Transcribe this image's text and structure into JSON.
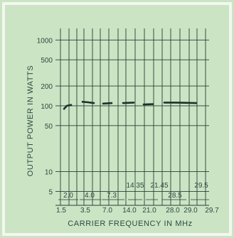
{
  "colors": {
    "background": "#cbe4c4",
    "line": "#1f2f2a",
    "grid": "#2a3f37",
    "text": "#2d4a40",
    "frame": "#f2f7ef"
  },
  "chart_data": {
    "type": "line",
    "xlabel": "CARRIER FREQUENCY IN  MHz",
    "ylabel": "OUTPUT POWER IN WATTS",
    "yscale": "log",
    "ylim": [
      3,
      1500
    ],
    "y_ticks": [
      {
        "label": "1000",
        "value": 1000
      },
      {
        "label": "500",
        "value": 500
      },
      {
        "label": "200",
        "value": 200
      },
      {
        "label": "100",
        "value": 100
      },
      {
        "label": "50",
        "value": 50
      },
      {
        "label": "10",
        "value": 10
      },
      {
        "label": "5",
        "value": 5
      }
    ],
    "x_tick_labels": [
      "1.5",
      "3.5",
      "7.0",
      "14.0",
      "21.0",
      "28.0",
      "29.0",
      "29.7"
    ],
    "band_labels": [
      "2.0",
      "4.0",
      "7.3",
      "14.35",
      "21.45",
      "28.5",
      "29.5"
    ],
    "grid": true,
    "series": [
      {
        "segments": [
          {
            "band": "1.5-2.0",
            "values": [
              90,
              100,
              103
            ]
          },
          {
            "band": "3.5-4.0",
            "values": [
              115,
              113,
              110
            ]
          },
          {
            "band": "7.0-7.3",
            "values": [
              108,
              110
            ]
          },
          {
            "band": "14.0-14.35",
            "values": [
              110,
              112
            ]
          },
          {
            "band": "21.0-21.45",
            "values": [
              105,
              106
            ]
          },
          {
            "band": "28.0-29.7",
            "values": [
              112,
              112,
              111,
              110
            ]
          }
        ]
      }
    ]
  }
}
